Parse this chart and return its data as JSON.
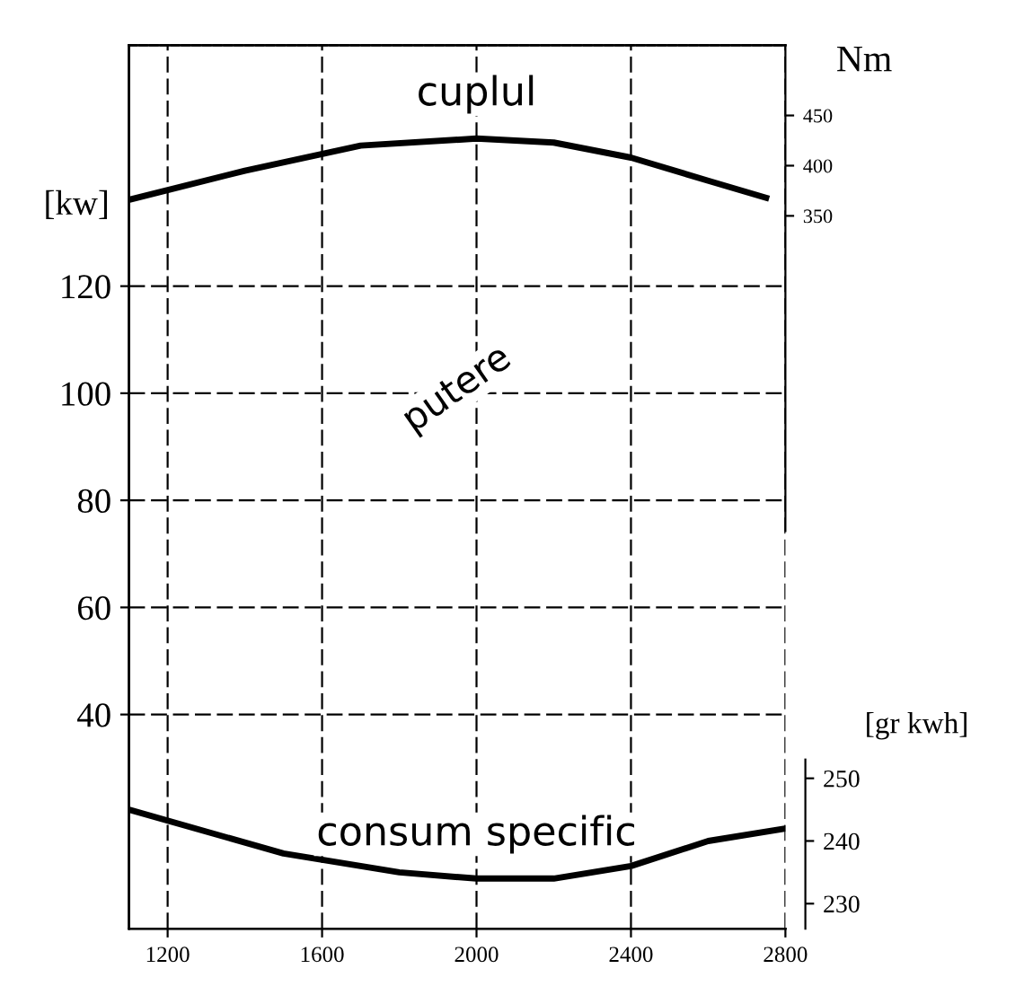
{
  "chart_data": {
    "type": "line",
    "ylabel": "[kw]",
    "y2label": "Nm",
    "y3label": "[gr kwh]",
    "xlim": [
      1100,
      2800
    ],
    "xticks": [
      1200,
      1600,
      2000,
      2400,
      2800
    ],
    "ylim": [
      0,
      165
    ],
    "yticks": [
      40,
      60,
      80,
      100,
      120
    ],
    "y2lim": [
      -360,
      520
    ],
    "y2ticks": [
      350,
      400,
      450
    ],
    "y3lim": [
      226,
      367
    ],
    "y3ticks": [
      230,
      240,
      250
    ],
    "grid": true,
    "marker": "none",
    "line_style": "solid",
    "annotations": [
      "putere"
    ],
    "series": [
      {
        "name": "cuplul",
        "color": "#000000",
        "axis": "y2",
        "x": [
          1100,
          1400,
          1700,
          2000,
          2200,
          2400,
          2600,
          2750
        ],
        "values": [
          366,
          395,
          420,
          427,
          423,
          408,
          385,
          368
        ]
      },
      {
        "name": "consum specific",
        "color": "#000000",
        "axis": "y3",
        "x": [
          1100,
          1500,
          1800,
          2000,
          2200,
          2400,
          2600,
          2800
        ],
        "values": [
          245,
          238,
          235,
          234,
          234,
          236,
          240,
          242
        ]
      }
    ]
  }
}
